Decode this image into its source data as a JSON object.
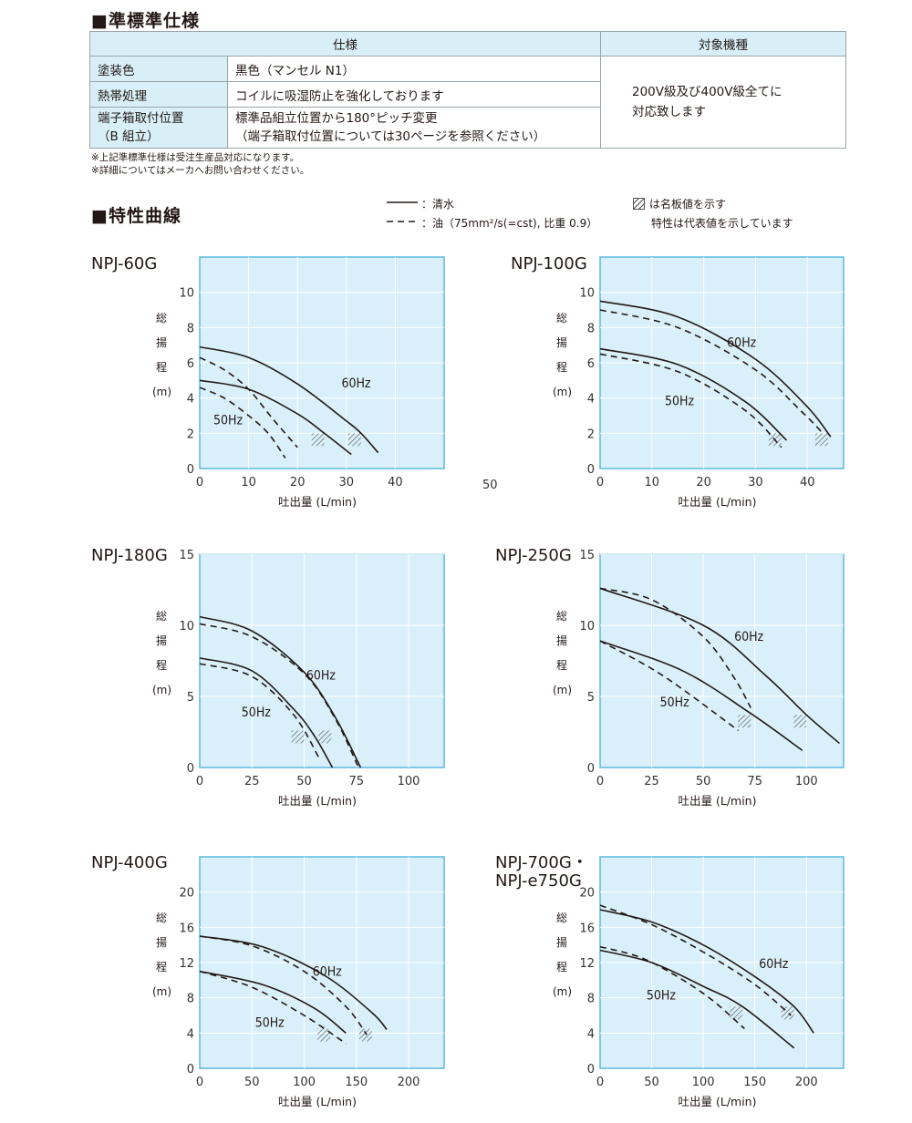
{
  "spec_section": {
    "title": "■準標準仕様",
    "header": {
      "spec": "仕様",
      "target": "対象機種"
    },
    "rows": [
      {
        "label": "塗装色",
        "value": "黒色（マンセル N1）"
      },
      {
        "label": "熱帯処理",
        "value": "コイルに吸湿防止を強化しております"
      },
      {
        "label": "端子箱取付位置",
        "label2": "（B 組立）",
        "value": "標準品組立位置から180°ピッチ変更",
        "value2": "（端子箱取付位置については30ページを参照ください）"
      }
    ],
    "target": {
      "line1": "200V級及び400V級全てに",
      "line2": "対応致します"
    },
    "notes": [
      "※上記準標準仕様は受注生産品対応になります。",
      "※詳細についてはメーカへお問い合わせください。"
    ]
  },
  "curve_section": {
    "title": "■特性曲線",
    "legend": {
      "solid": "：清水",
      "dashed": "：油（75mm²/s(=cst), 比重 0.9）",
      "nameplate": "は名板値を示す",
      "note": "特性は代表値を示しています"
    },
    "stray_label": "50"
  },
  "axis_labels": {
    "y": [
      "総",
      "揚",
      "程",
      "(m)"
    ],
    "x": "吐出量 (L/min)"
  },
  "chart_data": [
    {
      "type": "line",
      "title": "NPJ-60G",
      "xlim": [
        0,
        50
      ],
      "ylim": [
        0,
        12
      ],
      "xticks": [
        0,
        10,
        20,
        30,
        40
      ],
      "yticks": [
        0,
        2,
        4,
        6,
        8,
        10
      ],
      "series": [
        {
          "name": "60Hz 清水",
          "style": "solid",
          "points": [
            [
              0,
              6.9
            ],
            [
              10,
              6.3
            ],
            [
              20,
              4.8
            ],
            [
              30,
              2.7
            ],
            [
              33,
              2
            ],
            [
              36.5,
              0.9
            ]
          ]
        },
        {
          "name": "50Hz 清水",
          "style": "solid",
          "points": [
            [
              0,
              5
            ],
            [
              10,
              4.5
            ],
            [
              20,
              3.1
            ],
            [
              25.5,
              2
            ],
            [
              31,
              0.8
            ]
          ]
        },
        {
          "name": "60Hz 油",
          "style": "dashed",
          "points": [
            [
              0,
              6.3
            ],
            [
              5,
              5.6
            ],
            [
              10,
              4.5
            ],
            [
              15,
              2.8
            ],
            [
              20,
              1.2
            ]
          ]
        },
        {
          "name": "50Hz 油",
          "style": "dashed",
          "points": [
            [
              0,
              4.6
            ],
            [
              5,
              4
            ],
            [
              10,
              3.0
            ],
            [
              14,
              2.0
            ],
            [
              17.5,
              0.6
            ]
          ]
        }
      ],
      "nameplates": [
        [
          25.5,
          2
        ],
        [
          33,
          2
        ]
      ],
      "labels": [
        {
          "text": "60Hz",
          "x": 29,
          "y": 4.6
        },
        {
          "text": "50Hz",
          "x": 2.8,
          "y": 2.5
        }
      ]
    },
    {
      "type": "line",
      "title": "NPJ-100G",
      "xlim": [
        0,
        47
      ],
      "ylim": [
        0,
        12
      ],
      "xticks": [
        0,
        10,
        20,
        30,
        40
      ],
      "yticks": [
        0,
        2,
        4,
        6,
        8,
        10
      ],
      "series": [
        {
          "name": "60Hz 清水",
          "style": "solid",
          "points": [
            [
              0,
              9.5
            ],
            [
              15,
              8.6
            ],
            [
              30,
              6.2
            ],
            [
              40,
              3.5
            ],
            [
              44.5,
              1.8
            ]
          ]
        },
        {
          "name": "60Hz 油",
          "style": "dashed",
          "points": [
            [
              0,
              9
            ],
            [
              15,
              8
            ],
            [
              30,
              5.6
            ],
            [
              39,
              3.2
            ],
            [
              43,
              2
            ]
          ]
        },
        {
          "name": "50Hz 清水",
          "style": "solid",
          "points": [
            [
              0,
              6.8
            ],
            [
              15,
              5.9
            ],
            [
              28,
              3.8
            ],
            [
              36,
              1.6
            ]
          ]
        },
        {
          "name": "50Hz 油",
          "style": "dashed",
          "points": [
            [
              0,
              6.5
            ],
            [
              15,
              5.5
            ],
            [
              28,
              3.3
            ],
            [
              35,
              1.2
            ]
          ]
        }
      ],
      "nameplates": [
        [
          44,
          2
        ],
        [
          35,
          2
        ]
      ],
      "labels": [
        {
          "text": "60Hz",
          "x": 24.5,
          "y": 6.9
        },
        {
          "text": "50Hz",
          "x": 12.5,
          "y": 3.6
        }
      ]
    },
    {
      "type": "line",
      "title": "NPJ-180G",
      "xlim": [
        0,
        117
      ],
      "ylim": [
        0,
        15
      ],
      "xticks": [
        0,
        25,
        50,
        75,
        100
      ],
      "yticks": [
        0,
        5,
        10,
        15
      ],
      "series": [
        {
          "name": "60Hz 清水",
          "style": "solid",
          "points": [
            [
              0,
              10.6
            ],
            [
              25,
              9.6
            ],
            [
              50,
              6.7
            ],
            [
              65,
              3.5
            ],
            [
              77,
              0
            ]
          ]
        },
        {
          "name": "60Hz 油",
          "style": "dashed",
          "points": [
            [
              0,
              10.1
            ],
            [
              25,
              9.2
            ],
            [
              50,
              6.6
            ],
            [
              65,
              3.4
            ],
            [
              76,
              0
            ]
          ]
        },
        {
          "name": "50Hz 清水",
          "style": "solid",
          "points": [
            [
              0,
              7.7
            ],
            [
              25,
              6.8
            ],
            [
              45,
              4.1
            ],
            [
              55,
              2.2
            ],
            [
              63.5,
              0
            ]
          ]
        },
        {
          "name": "50Hz 油",
          "style": "dashed",
          "points": [
            [
              0,
              7.3
            ],
            [
              25,
              6.4
            ],
            [
              45,
              3.7
            ],
            [
              57,
              0.7
            ]
          ]
        }
      ],
      "nameplates": [
        [
          63,
          2.6
        ],
        [
          50,
          2.6
        ]
      ],
      "labels": [
        {
          "text": "60Hz",
          "x": 51,
          "y": 6.2
        },
        {
          "text": "50Hz",
          "x": 20,
          "y": 3.6
        }
      ]
    },
    {
      "type": "line",
      "title": "NPJ-250G",
      "xlim": [
        0,
        118
      ],
      "ylim": [
        0,
        15
      ],
      "xticks": [
        0,
        25,
        50,
        75,
        100
      ],
      "yticks": [
        0,
        5,
        10,
        15
      ],
      "series": [
        {
          "name": "60Hz 清水",
          "style": "solid",
          "points": [
            [
              0,
              12.6
            ],
            [
              50,
              10
            ],
            [
              80,
              6.5
            ],
            [
              100,
              3.7
            ],
            [
              116,
              1.7
            ]
          ]
        },
        {
          "name": "60Hz 油",
          "style": "dashed",
          "points": [
            [
              0,
              12.6
            ],
            [
              25,
              11.8
            ],
            [
              50,
              9.2
            ],
            [
              65,
              6.3
            ],
            [
              73,
              4.2
            ]
          ]
        },
        {
          "name": "50Hz 清水",
          "style": "solid",
          "points": [
            [
              0,
              8.9
            ],
            [
              40,
              6.8
            ],
            [
              73,
              3.8
            ],
            [
              98,
              1.2
            ]
          ]
        },
        {
          "name": "50Hz 油",
          "style": "dashed",
          "points": [
            [
              0,
              8.9
            ],
            [
              30,
              6.5
            ],
            [
              67,
              2.6
            ]
          ]
        }
      ],
      "nameplates": [
        [
          100,
          3.7
        ],
        [
          73,
          3.7
        ]
      ],
      "labels": [
        {
          "text": "60Hz",
          "x": 65,
          "y": 8.9
        },
        {
          "text": "50Hz",
          "x": 29,
          "y": 4.3
        }
      ]
    },
    {
      "type": "line",
      "title": "NPJ-400G",
      "xlim": [
        0,
        234
      ],
      "ylim": [
        0,
        24
      ],
      "xticks": [
        0,
        50,
        100,
        150,
        200
      ],
      "yticks": [
        0,
        4,
        8,
        12,
        16,
        20
      ],
      "series": [
        {
          "name": "60Hz 清水",
          "style": "solid",
          "points": [
            [
              0,
              15
            ],
            [
              60,
              13.8
            ],
            [
              120,
              10.5
            ],
            [
              165,
              6.3
            ],
            [
              179,
              4.4
            ]
          ]
        },
        {
          "name": "60Hz 油",
          "style": "dashed",
          "points": [
            [
              0,
              15
            ],
            [
              50,
              13.9
            ],
            [
              100,
              11
            ],
            [
              140,
              7
            ],
            [
              160,
              3.8
            ]
          ]
        },
        {
          "name": "50Hz 清水",
          "style": "solid",
          "points": [
            [
              0,
              11
            ],
            [
              60,
              9.5
            ],
            [
              110,
              6.8
            ],
            [
              140,
              4
            ]
          ]
        },
        {
          "name": "50Hz 油",
          "style": "dashed",
          "points": [
            [
              0,
              11
            ],
            [
              50,
              9.2
            ],
            [
              100,
              6
            ],
            [
              140,
              2.8
            ]
          ]
        }
      ],
      "nameplates": [
        [
          165,
          4.5
        ],
        [
          125,
          4.5
        ]
      ],
      "labels": [
        {
          "text": "60Hz",
          "x": 108,
          "y": 10.5
        },
        {
          "text": "50Hz",
          "x": 53,
          "y": 4.7
        }
      ]
    },
    {
      "type": "line",
      "title": "NPJ-700G・",
      "title2": "NPJ-e750G",
      "xlim": [
        0,
        236
      ],
      "ylim": [
        0,
        24
      ],
      "xticks": [
        0,
        50,
        100,
        150,
        200
      ],
      "yticks": [
        0,
        4,
        8,
        12,
        16,
        20
      ],
      "series": [
        {
          "name": "60Hz 清水",
          "style": "solid",
          "points": [
            [
              0,
              18
            ],
            [
              50,
              16.6
            ],
            [
              100,
              14
            ],
            [
              150,
              10.4
            ],
            [
              188,
              7
            ],
            [
              207,
              4
            ]
          ]
        },
        {
          "name": "60Hz 油",
          "style": "dashed",
          "points": [
            [
              0,
              18.5
            ],
            [
              50,
              16.3
            ],
            [
              100,
              13.2
            ],
            [
              150,
              9.5
            ],
            [
              185,
              6
            ]
          ]
        },
        {
          "name": "50Hz 清水",
          "style": "solid",
          "points": [
            [
              0,
              13.4
            ],
            [
              50,
              12
            ],
            [
              100,
              9.3
            ],
            [
              138,
              7
            ],
            [
              188,
              2.3
            ]
          ]
        },
        {
          "name": "50Hz 油",
          "style": "dashed",
          "points": [
            [
              0,
              13.8
            ],
            [
              45,
              12.3
            ],
            [
              100,
              8.5
            ],
            [
              140,
              4.5
            ]
          ]
        }
      ],
      "nameplates": [
        [
          188,
          7
        ],
        [
          138,
          7
        ]
      ],
      "labels": [
        {
          "text": "60Hz",
          "x": 154,
          "y": 11.4
        },
        {
          "text": "50Hz",
          "x": 45,
          "y": 7.8
        }
      ]
    }
  ]
}
